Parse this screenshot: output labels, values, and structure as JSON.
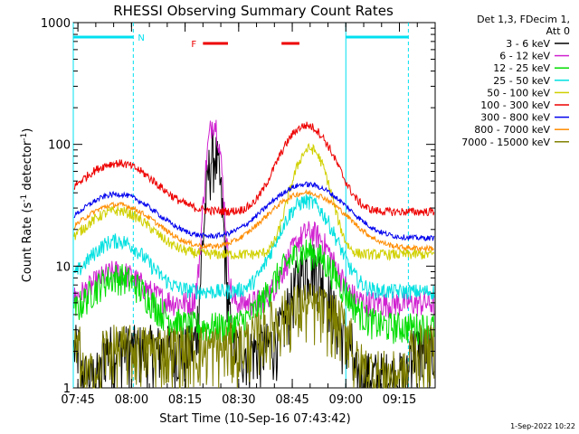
{
  "chart_data": {
    "type": "line",
    "title": "RHESSI Observing Summary Count Rates",
    "xlabel": "Start Time (10-Sep-16 07:43:42)",
    "ylabel_main": "Count Rate (s",
    "ylabel_sup1": "-1",
    "ylabel_mid": " detector",
    "ylabel_sup2": "-1",
    "ylabel_end": ")",
    "yscale": "log",
    "ylim": [
      1,
      1000
    ],
    "xlim": [
      "07:43:42",
      "09:25:00"
    ],
    "x_ticks": [
      "07:45",
      "08:00",
      "08:15",
      "08:30",
      "08:45",
      "09:00",
      "09:15"
    ],
    "y_ticks": [
      "1",
      "10",
      "100",
      "1000"
    ],
    "legend_header": [
      "Det 1,3, FDecim 1,",
      "Att 0"
    ],
    "footer_date": "1-Sep-2022 10:22",
    "flag_labels": {
      "night": "N",
      "flare": "F"
    },
    "series": [
      {
        "name": "3 - 6 keV",
        "color": "#000000",
        "baseline": 2.0,
        "noise": 1.0,
        "peaks": [
          {
            "t": "08:23",
            "amp": 80,
            "w": 1.6
          },
          {
            "t": "08:50",
            "amp": 8,
            "w": 4
          }
        ]
      },
      {
        "name": "6 - 12 keV",
        "color": "#d022d0",
        "baseline": 5.0,
        "noise": 0.25,
        "peaks": [
          {
            "t": "07:56",
            "amp": 4,
            "w": 6
          },
          {
            "t": "08:23",
            "amp": 150,
            "w": 1.6
          },
          {
            "t": "08:50",
            "amp": 14,
            "w": 5
          }
        ]
      },
      {
        "name": "12 - 25 keV",
        "color": "#00dd00",
        "baseline": 3.2,
        "noise": 0.3,
        "peaks": [
          {
            "t": "07:56",
            "amp": 5,
            "w": 7
          },
          {
            "t": "08:49",
            "amp": 10,
            "w": 7
          }
        ]
      },
      {
        "name": "25 - 50 keV",
        "color": "#00e0e0",
        "baseline": 6.2,
        "noise": 0.15,
        "peaks": [
          {
            "t": "07:56",
            "amp": 10,
            "w": 7
          },
          {
            "t": "08:49",
            "amp": 28,
            "w": 6
          }
        ]
      },
      {
        "name": "50 - 100 keV",
        "color": "#d0d000",
        "baseline": 12.5,
        "noise": 0.1,
        "peaks": [
          {
            "t": "07:56",
            "amp": 16,
            "w": 8
          },
          {
            "t": "08:50",
            "amp": 80,
            "w": 4
          }
        ]
      },
      {
        "name": "100 - 300 keV",
        "color": "#ee0000",
        "baseline": 28,
        "noise": 0.08,
        "peaks": [
          {
            "t": "07:56",
            "amp": 42,
            "w": 9
          },
          {
            "t": "08:49",
            "amp": 115,
            "w": 6
          }
        ]
      },
      {
        "name": "300 - 800 keV",
        "color": "#0000ee",
        "baseline": 17,
        "noise": 0.05,
        "peaks": [
          {
            "t": "07:56",
            "amp": 22,
            "w": 9
          },
          {
            "t": "08:49",
            "amp": 30,
            "w": 9
          }
        ]
      },
      {
        "name": "800 - 7000 keV",
        "color": "#ff8c00",
        "baseline": 14,
        "noise": 0.05,
        "peaks": [
          {
            "t": "07:56",
            "amp": 18,
            "w": 9
          },
          {
            "t": "08:49",
            "amp": 26,
            "w": 9
          }
        ]
      },
      {
        "name": "7000 - 15000 keV",
        "color": "#808000",
        "baseline": 2.0,
        "noise": 1.0,
        "peaks": [
          {
            "t": "08:49",
            "amp": 2.5,
            "w": 8
          }
        ]
      }
    ],
    "night_intervals": [
      [
        "07:43:42",
        "08:00:30"
      ],
      [
        "09:00:00",
        "09:17:30"
      ]
    ],
    "flare_intervals": [
      [
        "08:20",
        "08:27"
      ],
      [
        "08:42",
        "08:47"
      ]
    ],
    "colors": {
      "night": "#00e0f0",
      "flare": "#ee0000",
      "axis": "#000000"
    }
  }
}
